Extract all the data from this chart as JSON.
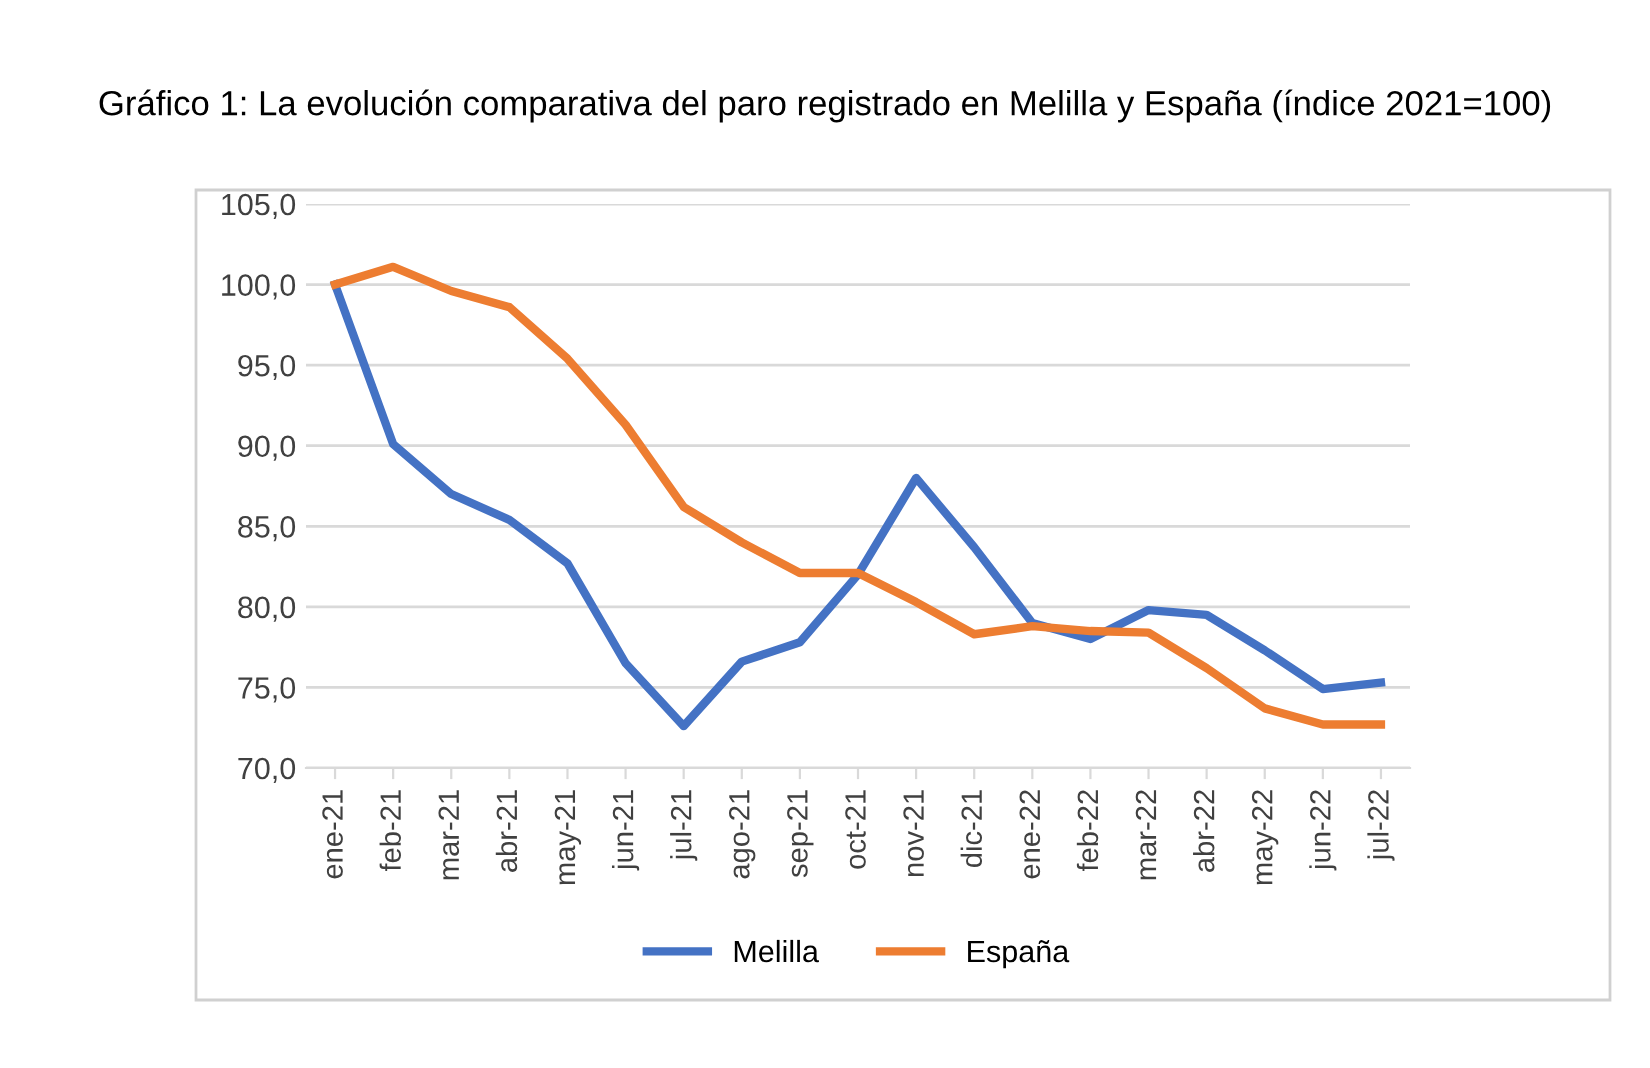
{
  "chart_data": {
    "type": "line",
    "title": "Gráfico 1: La evolución comparativa del paro registrado en Melilla y España (índice 2021=100)",
    "categories": [
      "ene-21",
      "feb-21",
      "mar-21",
      "abr-21",
      "may-21",
      "jun-21",
      "jul-21",
      "ago-21",
      "sep-21",
      "oct-21",
      "nov-21",
      "dic-21",
      "ene-22",
      "feb-22",
      "mar-22",
      "abr-22",
      "may-22",
      "jun-22",
      "jul-22"
    ],
    "series": [
      {
        "name": "Melilla",
        "color": "#4472c4",
        "values": [
          100.0,
          90.1,
          87.0,
          85.4,
          82.7,
          76.5,
          72.6,
          76.6,
          77.8,
          82.0,
          88.0,
          83.7,
          79.0,
          78.0,
          79.8,
          79.5,
          77.3,
          74.9,
          75.3
        ]
      },
      {
        "name": "España",
        "color": "#ed7d31",
        "values": [
          100.0,
          101.1,
          99.6,
          98.6,
          95.4,
          91.3,
          86.2,
          84.0,
          82.1,
          82.1,
          80.3,
          78.3,
          78.8,
          78.5,
          78.4,
          76.2,
          73.7,
          72.7,
          72.7
        ]
      }
    ],
    "ylim": [
      70,
      105
    ],
    "yticks": [
      {
        "value": 70,
        "label": "70,0"
      },
      {
        "value": 75,
        "label": "75,0"
      },
      {
        "value": 80,
        "label": "80,0"
      },
      {
        "value": 85,
        "label": "85,0"
      },
      {
        "value": 90,
        "label": "90,0"
      },
      {
        "value": 95,
        "label": "95,0"
      },
      {
        "value": 100,
        "label": "100,0"
      },
      {
        "value": 105,
        "label": "105,0"
      }
    ],
    "grid": "y",
    "legend": "bottom",
    "marker": "none",
    "line_style": "solid"
  }
}
